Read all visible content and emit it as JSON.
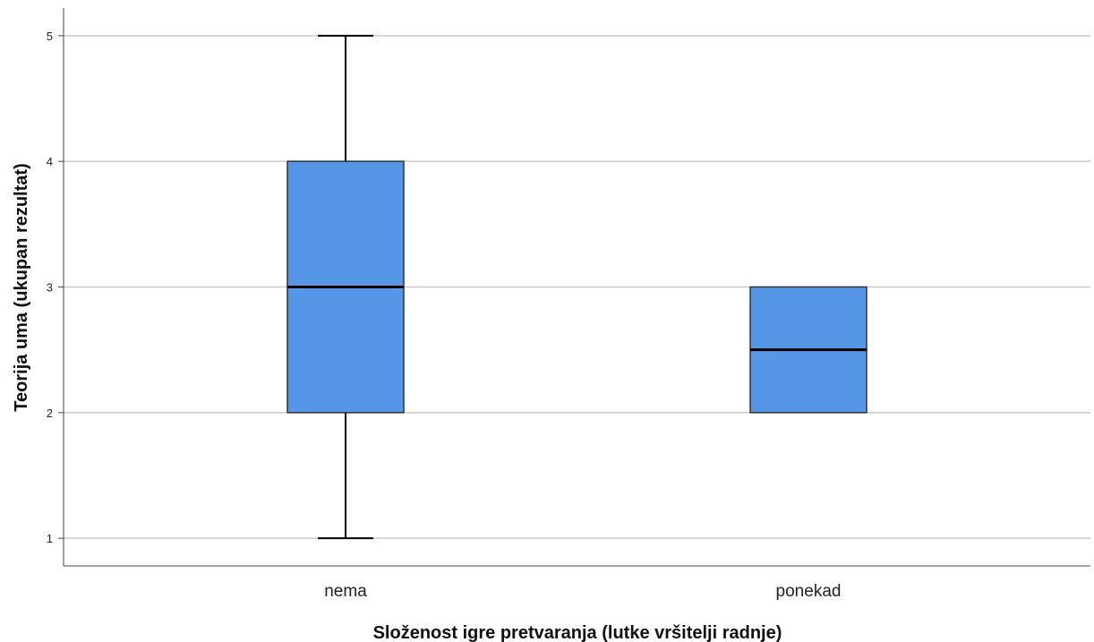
{
  "chart_data": {
    "type": "boxplot",
    "title": "",
    "xlabel": "Složenost igre pretvaranja (lutke vršitelji radnje)",
    "ylabel": "Teorija uma (ukupan rezultat)",
    "ylim": [
      0.78,
      5.22
    ],
    "yticks": [
      "1",
      "2",
      "3",
      "4",
      "5"
    ],
    "grid": "horizontal",
    "categories": [
      "nema",
      "ponekad"
    ],
    "boxes": [
      {
        "category": "nema",
        "whisker_low": 1,
        "q1": 2,
        "median": 3,
        "q3": 4,
        "whisker_high": 5
      },
      {
        "category": "ponekad",
        "whisker_low": 2,
        "q1": 2,
        "median": 2.5,
        "q3": 3,
        "whisker_high": 3
      }
    ],
    "colors": {
      "box_fill": "#5596E6",
      "box_stroke": "#333333",
      "median": "#000000",
      "grid": "#C8C8C8",
      "axis": "#444444"
    }
  }
}
